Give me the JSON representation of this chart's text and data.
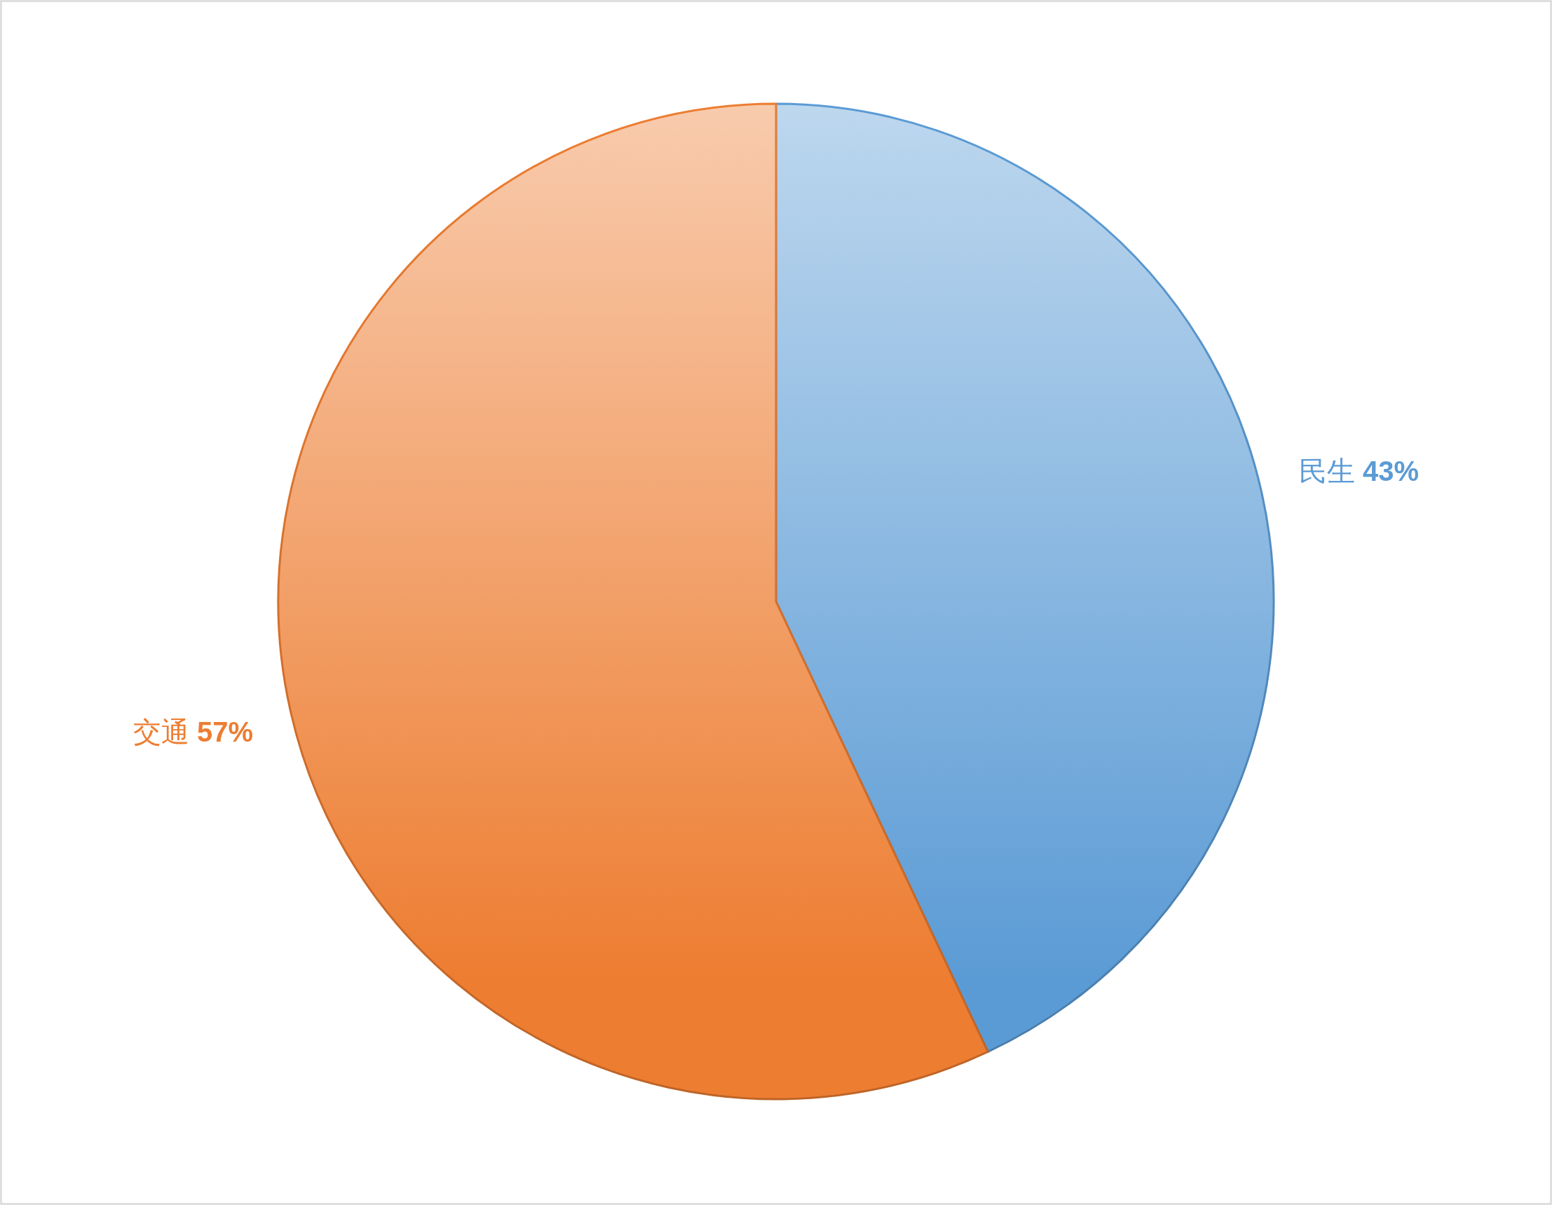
{
  "chart_data": {
    "type": "pie",
    "categories": [
      "民生",
      "交通"
    ],
    "values": [
      43,
      57
    ],
    "colors": [
      "#5b9bd5",
      "#ed7d31"
    ],
    "value_labels": [
      "43%",
      "57%"
    ]
  }
}
